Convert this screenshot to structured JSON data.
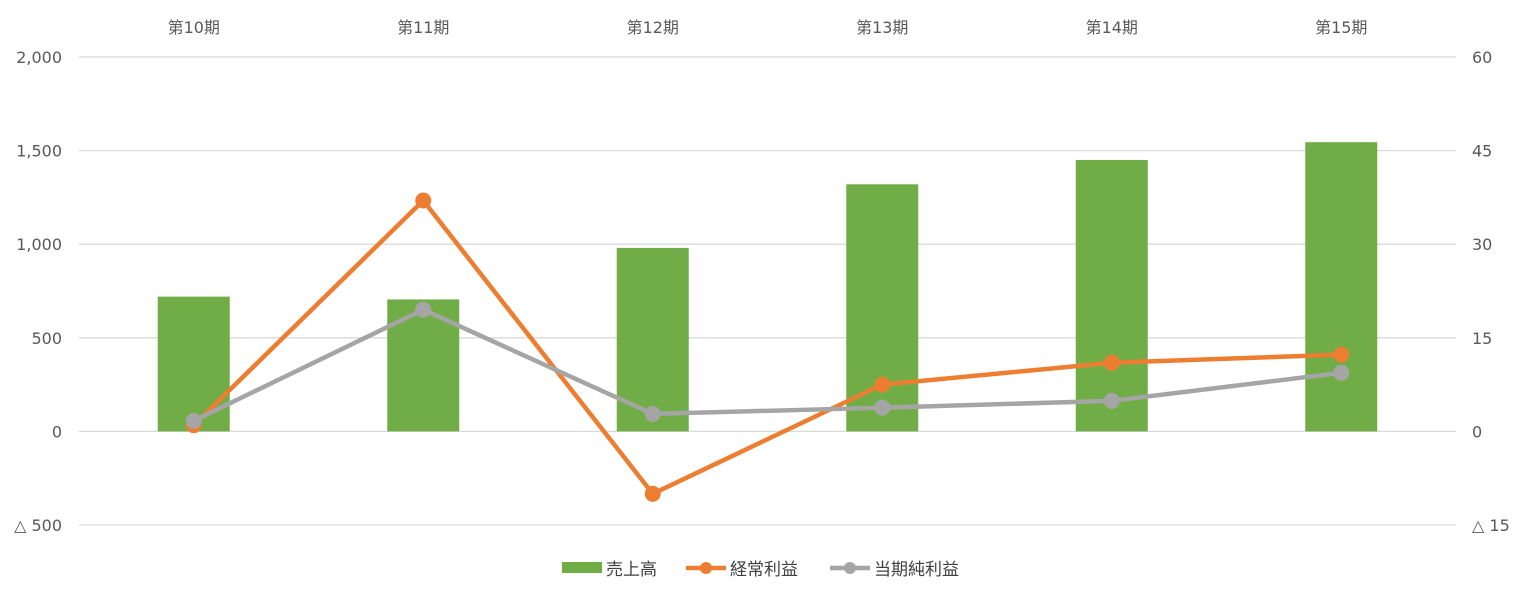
{
  "chart_data": {
    "type": "bar+line",
    "categories": [
      "第10期",
      "第11期",
      "第12期",
      "第13期",
      "第14期",
      "第15期"
    ],
    "left_axis": {
      "ylim": [
        -500,
        2000
      ],
      "ticks": [
        2000,
        1500,
        1000,
        500,
        0,
        -500
      ],
      "tick_labels": [
        "2,000",
        "1,500",
        "1,000",
        "500",
        "0",
        "△ 500"
      ]
    },
    "right_axis": {
      "ylim": [
        -15,
        60
      ],
      "ticks": [
        60,
        45,
        30,
        15,
        0,
        -15
      ],
      "tick_labels": [
        "60",
        "45",
        "30",
        "15",
        "0",
        "△ 15"
      ]
    },
    "series": [
      {
        "name": "売上高",
        "type": "bar",
        "axis": "left",
        "color": "#70AD47",
        "values": [
          720,
          705,
          980,
          1320,
          1450,
          1545
        ]
      },
      {
        "name": "経常利益",
        "type": "line",
        "axis": "right",
        "color": "#ED7D31",
        "values": [
          1.0,
          37.0,
          -10.0,
          7.5,
          11.0,
          12.3
        ]
      },
      {
        "name": "当期純利益",
        "type": "line",
        "axis": "right",
        "color": "#A5A5A5",
        "values": [
          1.7,
          19.5,
          2.8,
          3.8,
          4.9,
          9.4
        ]
      }
    ],
    "grid": true,
    "legend_position": "bottom"
  }
}
